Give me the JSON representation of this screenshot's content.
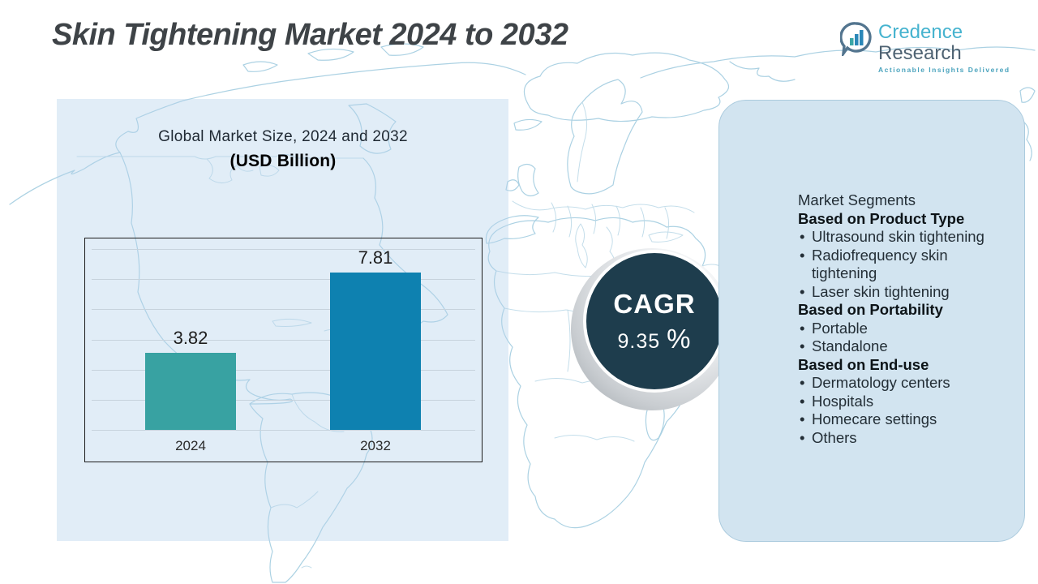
{
  "title": "Skin Tightening Market 2024 to 2032",
  "logo": {
    "brand_primary": "Credence",
    "brand_secondary": "Research",
    "tagline": "Actionable Insights Delivered",
    "icon": "bar-chart-bubble-icon"
  },
  "chart_panel": {
    "title_line1": "Global Market Size, 2024 and 2032",
    "title_line2": "(USD Billion)"
  },
  "chart_data": {
    "type": "bar",
    "title": "Global Market Size, 2024 and 2032 (USD Billion)",
    "categories": [
      "2024",
      "2032"
    ],
    "values": [
      3.82,
      7.81
    ],
    "value_labels": [
      "3.82",
      "7.81"
    ],
    "bar_colors": [
      "#38a2a2",
      "#0e81b0"
    ],
    "ylim": [
      0,
      9
    ],
    "gridlines": 7,
    "xlabel": "",
    "ylabel": "",
    "legend": "none",
    "grid": "horizontal"
  },
  "cagr": {
    "label": "CAGR",
    "value": "9.35",
    "percent_symbol": "%"
  },
  "segments_panel": {
    "heading": "Market Segments",
    "groups": [
      {
        "title": "Based on Product Type",
        "items": [
          "Ultrasound skin tightening",
          "Radiofrequency skin tightening",
          "Laser skin tightening"
        ]
      },
      {
        "title": "Based on Portability",
        "items": [
          "Portable",
          "Standalone"
        ]
      },
      {
        "title": "Based on End-use",
        "items": [
          "Dermatology centers",
          "Hospitals",
          "Homecare settings",
          "Others"
        ]
      }
    ]
  },
  "colors": {
    "bar_2024": "#38a2a2",
    "bar_2032": "#0e81b0",
    "cagr_circle": "#1e3d4d",
    "right_panel_bg": "#d2e4f0",
    "left_panel_bg": "#e6eff6",
    "map_stroke": "#a9cfe3",
    "brand_teal": "#45b3cf",
    "brand_slate": "#4e6272",
    "title_color": "#3e4347"
  }
}
